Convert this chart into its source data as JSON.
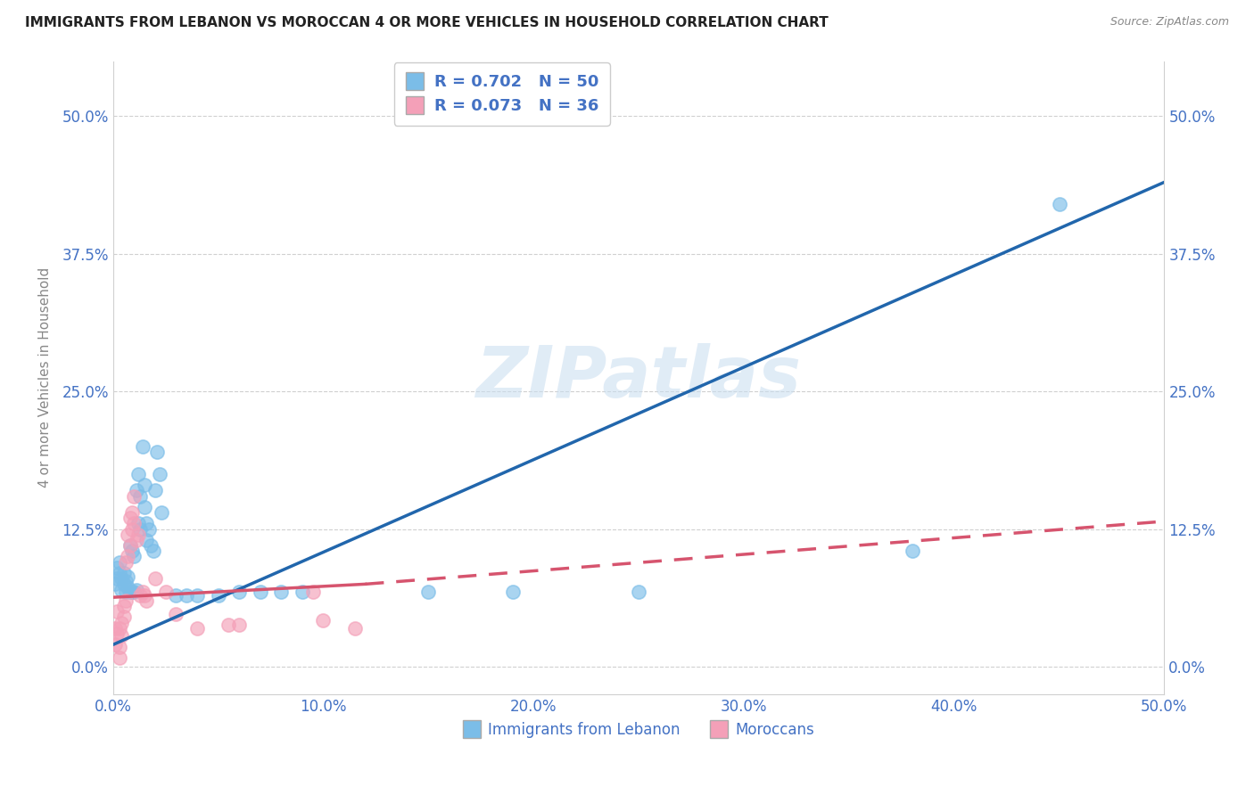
{
  "title": "IMMIGRANTS FROM LEBANON VS MOROCCAN 4 OR MORE VEHICLES IN HOUSEHOLD CORRELATION CHART",
  "source": "Source: ZipAtlas.com",
  "ylabel": "4 or more Vehicles in Household",
  "xlim": [
    0.0,
    0.5
  ],
  "ylim": [
    -0.025,
    0.55
  ],
  "xticks": [
    0.0,
    0.1,
    0.2,
    0.3,
    0.4,
    0.5
  ],
  "xticklabels": [
    "0.0%",
    "10.0%",
    "20.0%",
    "30.0%",
    "40.0%",
    "50.0%"
  ],
  "yticks": [
    0.0,
    0.125,
    0.25,
    0.375,
    0.5
  ],
  "yticklabels": [
    "0.0%",
    "12.5%",
    "25.0%",
    "37.5%",
    "50.0%"
  ],
  "legend_r1": "R = 0.702",
  "legend_n1": "N = 50",
  "legend_r2": "R = 0.073",
  "legend_n2": "N = 36",
  "blue_color": "#7bbde8",
  "pink_color": "#f4a0b8",
  "trendline_blue": "#2166ac",
  "trendline_pink": "#d6546e",
  "watermark_text": "ZIPatlas",
  "scatter_blue": [
    [
      0.001,
      0.075
    ],
    [
      0.002,
      0.08
    ],
    [
      0.002,
      0.09
    ],
    [
      0.003,
      0.085
    ],
    [
      0.003,
      0.095
    ],
    [
      0.004,
      0.07
    ],
    [
      0.004,
      0.08
    ],
    [
      0.005,
      0.075
    ],
    [
      0.005,
      0.085
    ],
    [
      0.006,
      0.068
    ],
    [
      0.006,
      0.078
    ],
    [
      0.007,
      0.072
    ],
    [
      0.007,
      0.082
    ],
    [
      0.008,
      0.068
    ],
    [
      0.008,
      0.11
    ],
    [
      0.009,
      0.068
    ],
    [
      0.009,
      0.105
    ],
    [
      0.01,
      0.068
    ],
    [
      0.01,
      0.1
    ],
    [
      0.011,
      0.07
    ],
    [
      0.011,
      0.16
    ],
    [
      0.012,
      0.175
    ],
    [
      0.012,
      0.13
    ],
    [
      0.013,
      0.125
    ],
    [
      0.013,
      0.155
    ],
    [
      0.014,
      0.2
    ],
    [
      0.015,
      0.145
    ],
    [
      0.015,
      0.165
    ],
    [
      0.016,
      0.115
    ],
    [
      0.016,
      0.13
    ],
    [
      0.017,
      0.125
    ],
    [
      0.018,
      0.11
    ],
    [
      0.019,
      0.105
    ],
    [
      0.02,
      0.16
    ],
    [
      0.021,
      0.195
    ],
    [
      0.022,
      0.175
    ],
    [
      0.023,
      0.14
    ],
    [
      0.03,
      0.065
    ],
    [
      0.035,
      0.065
    ],
    [
      0.04,
      0.065
    ],
    [
      0.05,
      0.065
    ],
    [
      0.06,
      0.068
    ],
    [
      0.07,
      0.068
    ],
    [
      0.08,
      0.068
    ],
    [
      0.09,
      0.068
    ],
    [
      0.15,
      0.068
    ],
    [
      0.19,
      0.068
    ],
    [
      0.25,
      0.068
    ],
    [
      0.38,
      0.105
    ],
    [
      0.45,
      0.42
    ]
  ],
  "scatter_pink": [
    [
      0.001,
      0.035
    ],
    [
      0.001,
      0.02
    ],
    [
      0.002,
      0.03
    ],
    [
      0.002,
      0.05
    ],
    [
      0.003,
      0.035
    ],
    [
      0.003,
      0.018
    ],
    [
      0.004,
      0.028
    ],
    [
      0.004,
      0.04
    ],
    [
      0.005,
      0.045
    ],
    [
      0.005,
      0.055
    ],
    [
      0.006,
      0.06
    ],
    [
      0.006,
      0.095
    ],
    [
      0.007,
      0.1
    ],
    [
      0.007,
      0.12
    ],
    [
      0.008,
      0.11
    ],
    [
      0.008,
      0.135
    ],
    [
      0.009,
      0.125
    ],
    [
      0.009,
      0.14
    ],
    [
      0.01,
      0.13
    ],
    [
      0.01,
      0.155
    ],
    [
      0.011,
      0.115
    ],
    [
      0.012,
      0.12
    ],
    [
      0.013,
      0.065
    ],
    [
      0.014,
      0.068
    ],
    [
      0.015,
      0.065
    ],
    [
      0.016,
      0.06
    ],
    [
      0.02,
      0.08
    ],
    [
      0.025,
      0.068
    ],
    [
      0.03,
      0.048
    ],
    [
      0.04,
      0.035
    ],
    [
      0.055,
      0.038
    ],
    [
      0.06,
      0.038
    ],
    [
      0.095,
      0.068
    ],
    [
      0.115,
      0.035
    ],
    [
      0.1,
      0.042
    ],
    [
      0.003,
      0.008
    ]
  ],
  "blue_trendline": [
    [
      0.0,
      0.02
    ],
    [
      0.5,
      0.44
    ]
  ],
  "pink_trendline_solid": [
    [
      0.0,
      0.063
    ],
    [
      0.12,
      0.075
    ]
  ],
  "pink_trendline_dash": [
    [
      0.12,
      0.075
    ],
    [
      0.5,
      0.132
    ]
  ]
}
